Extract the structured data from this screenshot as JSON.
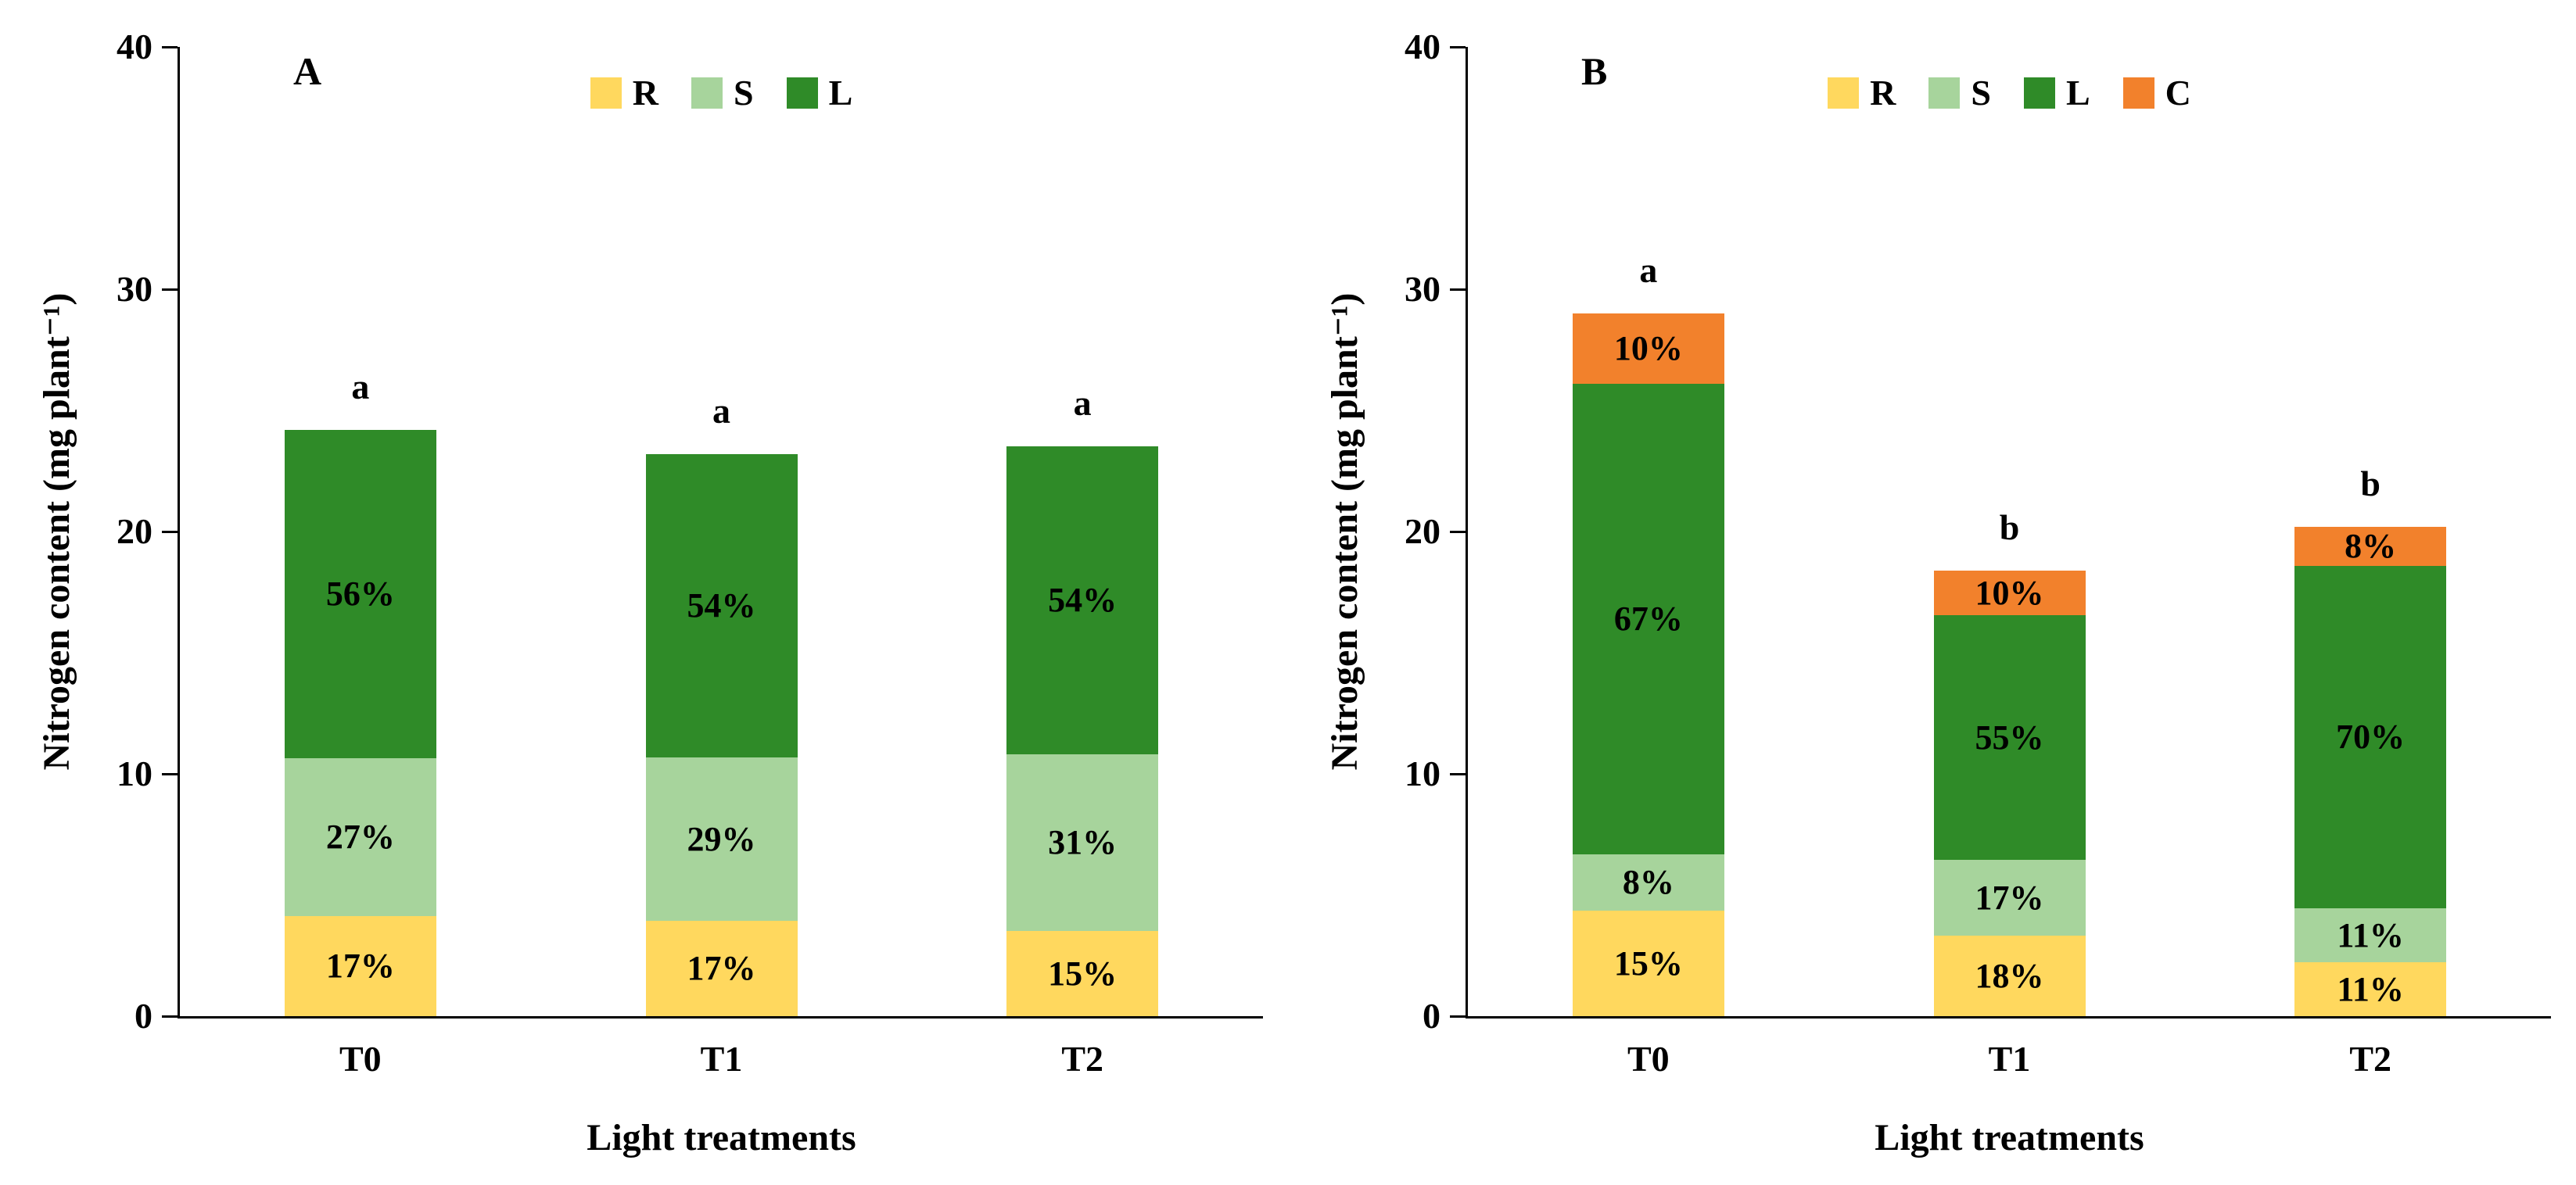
{
  "chart_data": [
    {
      "type": "bar",
      "stacked": true,
      "panel": "A",
      "title": "",
      "xlabel": "Light treatments",
      "ylabel": "Nitrogen content (mg plant⁻¹)",
      "ylim": [
        0,
        40
      ],
      "yticks": [
        0,
        10,
        20,
        30,
        40
      ],
      "legend_position": "top",
      "grid": false,
      "categories": [
        "T0",
        "T1",
        "T2"
      ],
      "totals": [
        24.2,
        23.2,
        23.5
      ],
      "sig_letters": [
        "a",
        "a",
        "a"
      ],
      "series": [
        {
          "name": "R",
          "color": "#FFD85E",
          "pct": [
            17,
            17,
            15
          ],
          "values": [
            4.11,
            3.94,
            3.53
          ]
        },
        {
          "name": "S",
          "color": "#A7D49C",
          "pct": [
            27,
            29,
            31
          ],
          "values": [
            6.53,
            6.73,
            7.29
          ]
        },
        {
          "name": "L",
          "color": "#2F8B28",
          "pct": [
            56,
            54,
            54
          ],
          "values": [
            13.55,
            12.53,
            12.69
          ]
        }
      ]
    },
    {
      "type": "bar",
      "stacked": true,
      "panel": "B",
      "title": "",
      "xlabel": "Light treatments",
      "ylabel": "Nitrogen content (mg plant⁻¹)",
      "ylim": [
        0,
        40
      ],
      "yticks": [
        0,
        10,
        20,
        30,
        40
      ],
      "legend_position": "top",
      "grid": false,
      "categories": [
        "T0",
        "T1",
        "T2"
      ],
      "totals": [
        29.0,
        18.4,
        20.2
      ],
      "sig_letters": [
        "a",
        "b",
        "b"
      ],
      "series": [
        {
          "name": "R",
          "color": "#FFD85E",
          "pct": [
            15,
            18,
            11
          ],
          "values": [
            4.35,
            3.31,
            2.22
          ]
        },
        {
          "name": "S",
          "color": "#A7D49C",
          "pct": [
            8,
            17,
            11
          ],
          "values": [
            2.32,
            3.13,
            2.22
          ]
        },
        {
          "name": "L",
          "color": "#2F8B28",
          "pct": [
            67,
            55,
            70
          ],
          "values": [
            19.43,
            10.12,
            14.14
          ]
        },
        {
          "name": "C",
          "color": "#F2812C",
          "pct": [
            10,
            10,
            8
          ],
          "values": [
            2.9,
            1.84,
            1.62
          ]
        }
      ]
    }
  ]
}
